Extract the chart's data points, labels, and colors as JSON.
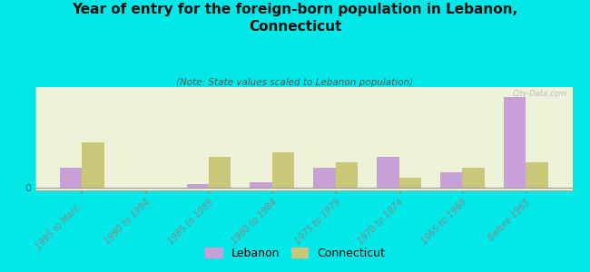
{
  "title": "Year of entry for the foreign-born population in Lebanon,\nConnecticut",
  "subtitle": "(Note: State values scaled to Lebanon population)",
  "categories": [
    "1995 to Marc...",
    "1990 to 1994",
    "1985 to 1989",
    "1980 to 1984",
    "1975 to 1979",
    "1970 to 1974",
    "1965 to 1969",
    "Before 1965"
  ],
  "lebanon_values": [
    2,
    0,
    0.3,
    0.5,
    2,
    3,
    1.5,
    9
  ],
  "connecticut_values": [
    4.5,
    0,
    3,
    3.5,
    2.5,
    1,
    2,
    2.5
  ],
  "lebanon_color": "#c8a0d8",
  "connecticut_color": "#c8c878",
  "background_color": "#00e8e8",
  "plot_bg": "#eef2d8",
  "watermark": "City-Data.com",
  "bar_width": 0.35,
  "ylim": [
    -0.3,
    10
  ],
  "legend_labels": [
    "Lebanon",
    "Connecticut"
  ]
}
